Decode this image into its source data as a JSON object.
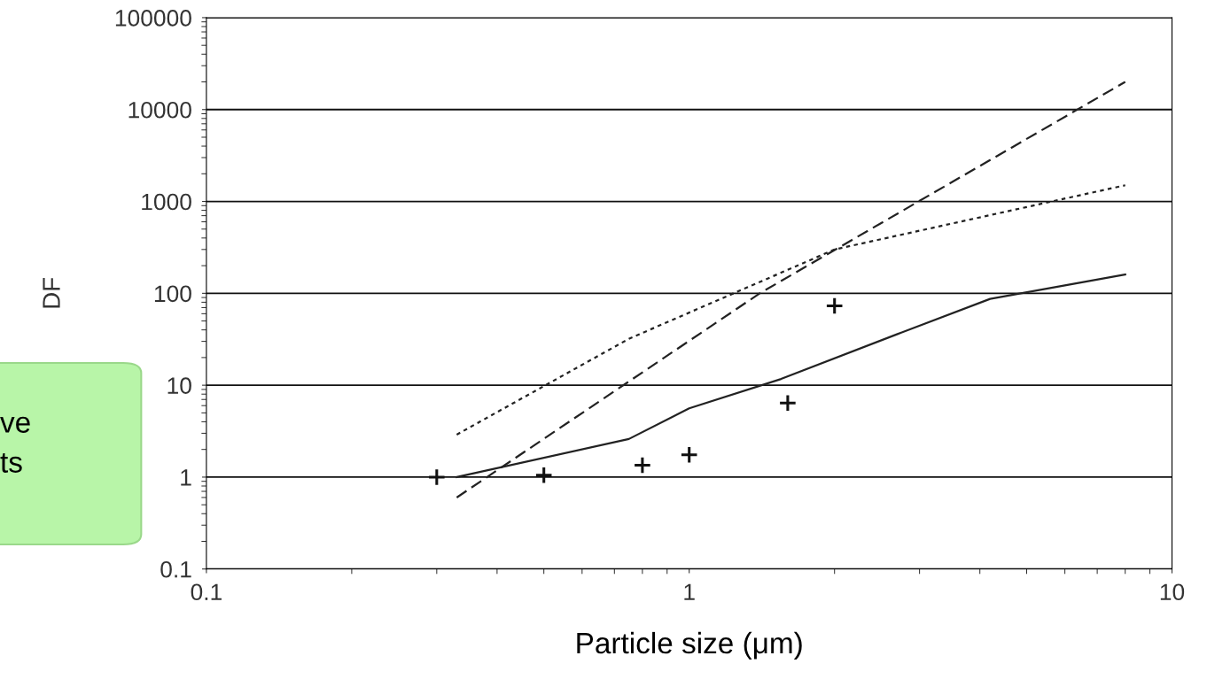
{
  "chart_data": {
    "type": "line",
    "xlabel": "Particle size (μm)",
    "ylabel": "DF",
    "log": "xy",
    "grid": "y",
    "xlim": [
      0.1,
      10
    ],
    "xticks": [
      0.1,
      1,
      10
    ],
    "ylim": [
      0.1,
      100000
    ],
    "yticks": [
      0.1,
      1,
      10,
      100,
      1000,
      10000,
      100000
    ],
    "series": [
      {
        "line_style": "dashed",
        "color": "#222222",
        "x": [
          0.33,
          1.4,
          8
        ],
        "values": [
          0.6,
          100,
          20000
        ]
      },
      {
        "line_style": "dotted",
        "color": "#222222",
        "x": [
          0.33,
          0.75,
          2,
          8
        ],
        "values": [
          2.9,
          32,
          300,
          1500
        ]
      },
      {
        "line_style": "solid",
        "color": "#222222",
        "x": [
          0.33,
          0.75,
          1,
          1.55,
          2.7,
          4.2,
          8
        ],
        "values": [
          1.0,
          2.6,
          5.6,
          11.7,
          36,
          87,
          160
        ]
      },
      {
        "type": "scatter",
        "marker": "cross",
        "color": "#111111",
        "x": [
          0.3,
          0.5,
          0.8,
          1,
          1.6,
          2
        ],
        "values": [
          1.0,
          1.05,
          1.35,
          1.75,
          6.4,
          73
        ]
      }
    ],
    "annotations": [
      "ve",
      "ts"
    ]
  }
}
